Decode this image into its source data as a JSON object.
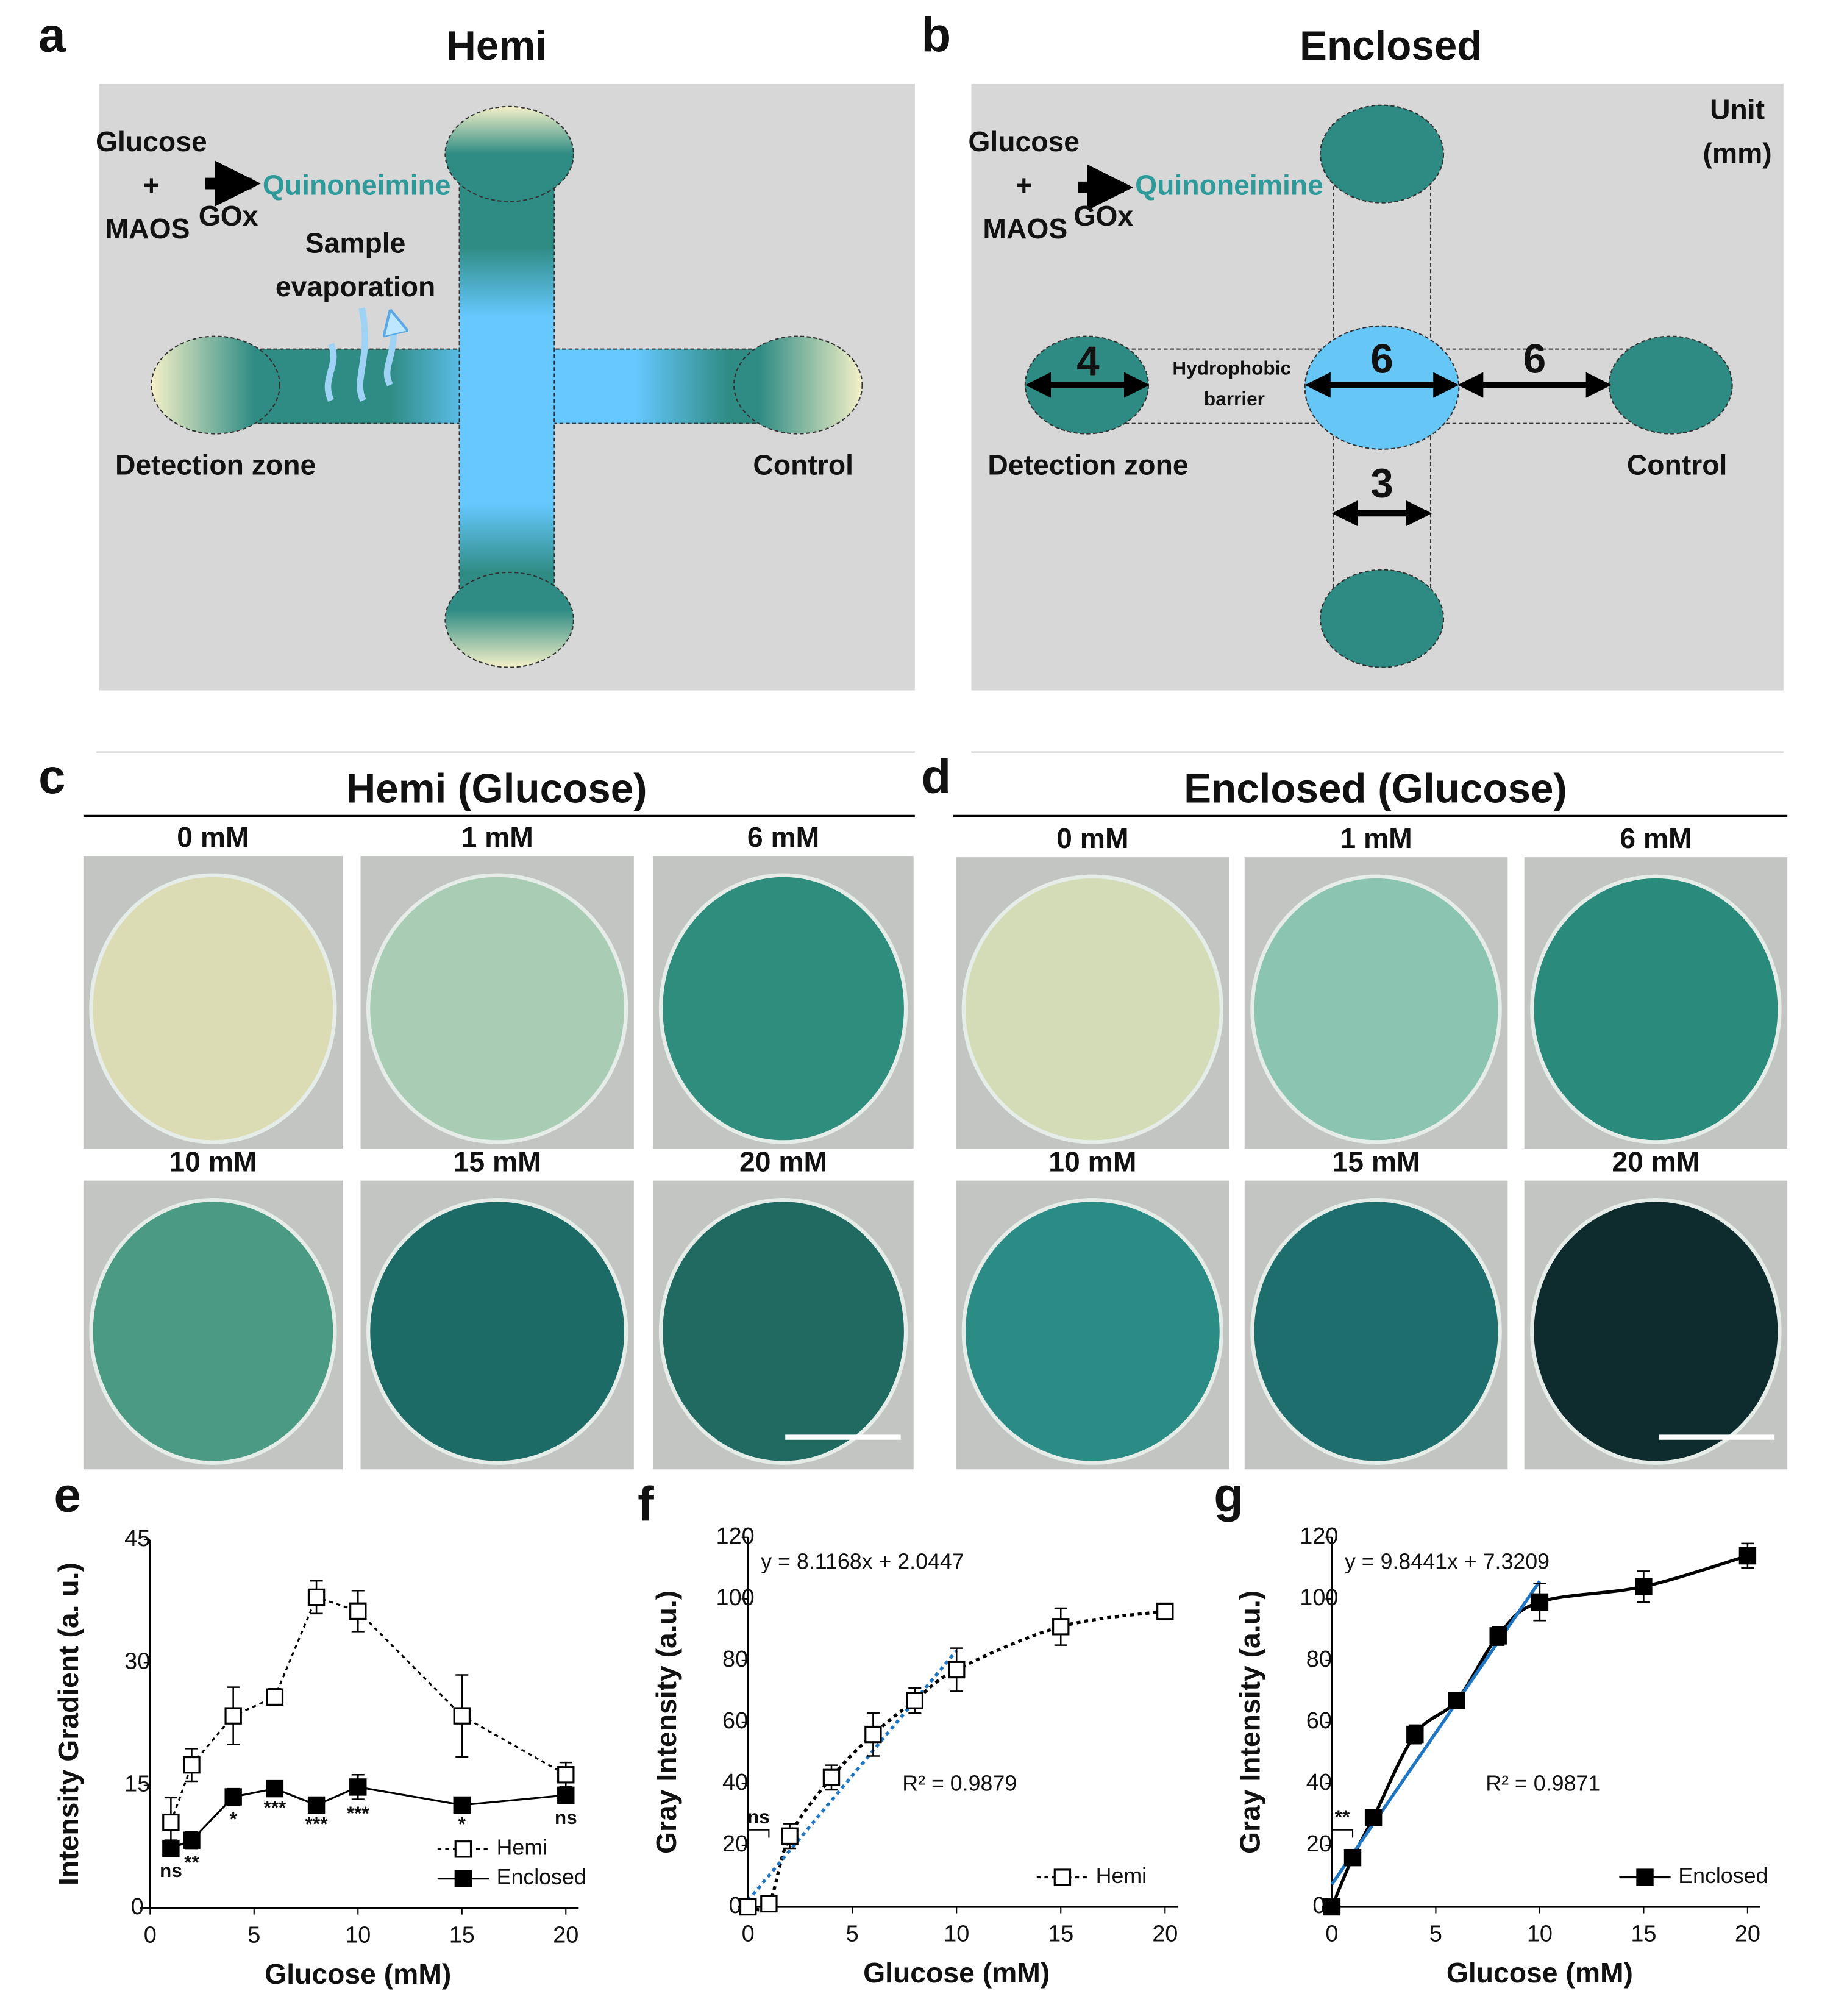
{
  "panel_a": {
    "letter": "a",
    "title": "Hemi",
    "reaction": {
      "reactant_1": "Glucose",
      "plus": "+",
      "reactant_2": "MAOS",
      "enzyme": "GOx",
      "product": "Quinoneimine"
    },
    "evaporation": [
      "Sample",
      "evaporation"
    ],
    "zones": {
      "detection": "Detection zone",
      "control": "Control"
    }
  },
  "panel_b": {
    "letter": "b",
    "title": "Enclosed",
    "reaction": {
      "reactant_1": "Glucose",
      "plus": "+",
      "reactant_2": "MAOS",
      "enzyme": "GOx",
      "product": "Quinoneimine"
    },
    "unit": [
      "Unit",
      "(mm)"
    ],
    "dimensions": {
      "detection_zone": 4,
      "center_zone": 6,
      "channel_length": 6,
      "channel_width": 3
    },
    "barrier": [
      "Hydrophobic",
      "barrier"
    ],
    "zones": {
      "detection": "Detection zone",
      "control": "Control"
    }
  },
  "panel_c": {
    "letter": "c",
    "title": "Hemi (Glucose)",
    "labels": [
      "0 mM",
      "1 mM",
      "6 mM",
      "10 mM",
      "15 mM",
      "20 mM"
    ]
  },
  "panel_d": {
    "letter": "d",
    "title": "Enclosed (Glucose)",
    "labels": [
      "0 mM",
      "1 mM",
      "6 mM",
      "10 mM",
      "15 mM",
      "20 mM"
    ]
  },
  "chart_data": [
    {
      "letter": "e",
      "type": "line",
      "x_label": "Glucose (mM)",
      "y_label": "Intensity Gradient (a. u.)",
      "x": [
        1,
        2,
        4,
        6,
        8,
        10,
        15,
        20
      ],
      "xlim": [
        0,
        20
      ],
      "xticks": [
        0,
        5,
        10,
        15,
        20
      ],
      "ylim": [
        0,
        45
      ],
      "yticks": [
        0,
        15,
        30,
        45
      ],
      "legend": "lower right",
      "series": [
        {
          "name": "Hemi",
          "color": "#000000",
          "marker": "open",
          "line": "dotted",
          "values": [
            10.5,
            17.5,
            23.5,
            25.8,
            38,
            36.3,
            23.5,
            16.3
          ],
          "errors": [
            3,
            2,
            3.5,
            1,
            2,
            2.5,
            5,
            1.5
          ]
        },
        {
          "name": "Enclosed",
          "color": "#000000",
          "marker": "filled",
          "line": "solid",
          "values": [
            7.3,
            8.3,
            13.6,
            14.6,
            12.6,
            14.8,
            12.6,
            13.8
          ],
          "errors": [
            1,
            1,
            1,
            0.6,
            0.6,
            1.5,
            0.6,
            1
          ],
          "significance": [
            "ns",
            "**",
            "*",
            "***",
            "***",
            "***",
            "*",
            "ns"
          ]
        }
      ]
    },
    {
      "letter": "f",
      "type": "scatter",
      "x_label": "Glucose (mM)",
      "y_label": "Gray Intensity (a.u.)",
      "x": [
        0,
        1,
        2,
        4,
        6,
        8,
        10,
        15,
        20
      ],
      "xlim": [
        0,
        20
      ],
      "xticks": [
        0,
        5,
        10,
        15,
        20
      ],
      "ylim": [
        0,
        120
      ],
      "yticks": [
        0,
        20,
        40,
        60,
        80,
        100,
        120
      ],
      "legend": "lower right",
      "bracket_label": "ns",
      "linear_fit": {
        "equation": "y = 8.1168x + 2.0447",
        "slope": 8.1168,
        "intercept": 2.0447,
        "x": [
          0,
          10
        ],
        "color": "#1f77c4"
      },
      "r2_label": "R² = 0.9879",
      "series": [
        {
          "name": "Hemi",
          "color": "#000000",
          "marker": "open",
          "line": "dotted",
          "values": [
            0,
            1,
            23,
            42,
            56,
            67,
            77,
            91,
            96
          ],
          "errors": [
            0,
            1,
            4,
            4,
            7,
            4,
            7,
            6,
            2
          ]
        }
      ]
    },
    {
      "letter": "g",
      "type": "scatter",
      "x_label": "Glucose (mM)",
      "y_label": "Gray Intensity (a.u.)",
      "x": [
        0,
        1,
        2,
        4,
        6,
        8,
        10,
        15,
        20
      ],
      "xlim": [
        0,
        20
      ],
      "xticks": [
        0,
        5,
        10,
        15,
        20
      ],
      "ylim": [
        0,
        120
      ],
      "yticks": [
        0,
        20,
        40,
        60,
        80,
        100,
        120
      ],
      "legend": "lower right",
      "bracket_label": "**",
      "linear_fit": {
        "equation": "y = 9.8441x + 7.3209",
        "slope": 9.8441,
        "intercept": 7.3209,
        "x": [
          0,
          10
        ],
        "color": "#1f77c4"
      },
      "r2_label": "R² = 0.9871",
      "series": [
        {
          "name": "Enclosed",
          "color": "#000000",
          "marker": "filled",
          "line": "solid",
          "values": [
            0,
            16,
            29,
            56,
            67,
            88,
            99,
            104,
            114
          ],
          "errors": [
            0,
            2,
            2,
            3,
            2,
            3,
            6,
            5,
            4
          ]
        }
      ]
    }
  ]
}
